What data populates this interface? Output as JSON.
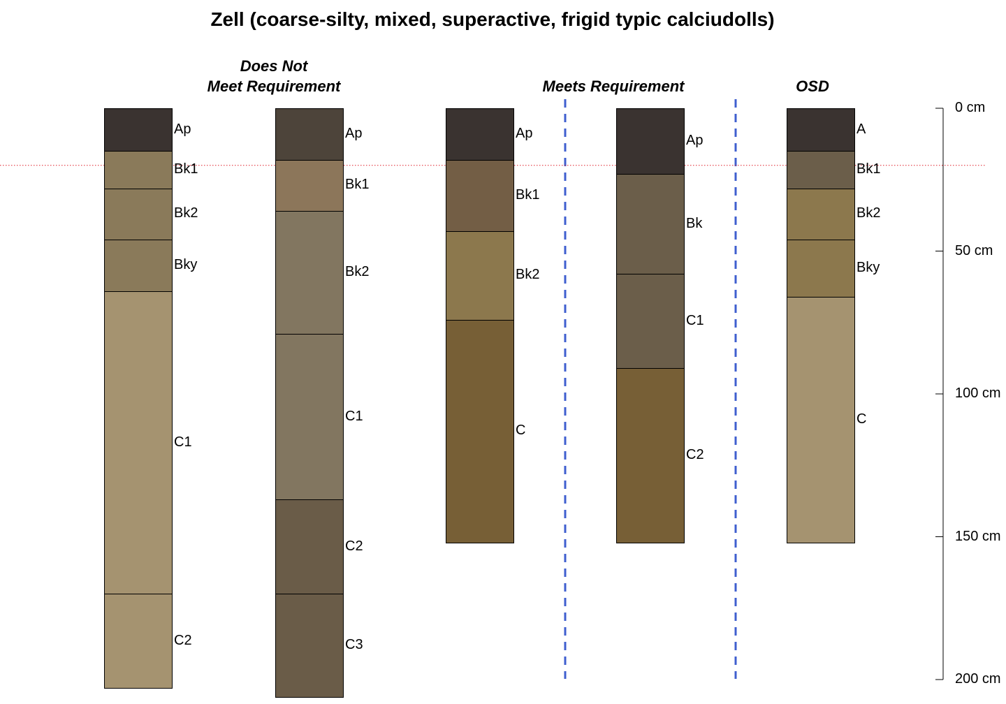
{
  "title": "Zell (coarse-silty, mixed, superactive, frigid typic calciudolls)",
  "chart_data": {
    "type": "soil-profile",
    "depth_units": "cm",
    "depth_range": [
      0,
      200
    ],
    "depth_ticks": [
      {
        "value": 0,
        "label": "0 cm"
      },
      {
        "value": 50,
        "label": "50 cm"
      },
      {
        "value": 100,
        "label": "100 cm"
      },
      {
        "value": 150,
        "label": "150 cm"
      },
      {
        "value": 200,
        "label": "200 cm"
      }
    ],
    "reference_depth": 20,
    "groups": [
      {
        "label_lines": [
          "Does Not",
          "Meet Requirement"
        ],
        "profiles": [
          0,
          1
        ]
      },
      {
        "label_lines": [
          "Meets Requirement"
        ],
        "profiles": [
          2,
          3
        ]
      },
      {
        "label_lines": [
          "OSD"
        ],
        "profiles": [
          4
        ]
      }
    ],
    "profiles": [
      {
        "horizons": [
          {
            "name": "Ap",
            "top": 0,
            "bottom": 15,
            "color": "#3a3330"
          },
          {
            "name": "Bk1",
            "top": 15,
            "bottom": 28,
            "color": "#8a7a5a"
          },
          {
            "name": "Bk2",
            "top": 28,
            "bottom": 46,
            "color": "#8a7a5a"
          },
          {
            "name": "Bky",
            "top": 46,
            "bottom": 64,
            "color": "#8a7a5a"
          },
          {
            "name": "C1",
            "top": 64,
            "bottom": 170,
            "color": "#a59370"
          },
          {
            "name": "C2",
            "top": 170,
            "bottom": 203,
            "color": "#a59370"
          }
        ]
      },
      {
        "horizons": [
          {
            "name": "Ap",
            "top": 0,
            "bottom": 18,
            "color": "#4d443a"
          },
          {
            "name": "Bk1",
            "top": 18,
            "bottom": 36,
            "color": "#8c765a"
          },
          {
            "name": "Bk2",
            "top": 36,
            "bottom": 79,
            "color": "#827660"
          },
          {
            "name": "C1",
            "top": 79,
            "bottom": 137,
            "color": "#827660"
          },
          {
            "name": "C2",
            "top": 137,
            "bottom": 170,
            "color": "#6a5c48"
          },
          {
            "name": "C3",
            "top": 170,
            "bottom": 206,
            "color": "#6a5c48"
          }
        ]
      },
      {
        "horizons": [
          {
            "name": "Ap",
            "top": 0,
            "bottom": 18,
            "color": "#3a3330"
          },
          {
            "name": "Bk1",
            "top": 18,
            "bottom": 43,
            "color": "#735e45"
          },
          {
            "name": "Bk2",
            "top": 43,
            "bottom": 74,
            "color": "#8c784d"
          },
          {
            "name": "C",
            "top": 74,
            "bottom": 152,
            "color": "#775f36"
          }
        ]
      },
      {
        "horizons": [
          {
            "name": "Ap",
            "top": 0,
            "bottom": 23,
            "color": "#3a3330"
          },
          {
            "name": "Bk",
            "top": 23,
            "bottom": 58,
            "color": "#6b5e4a"
          },
          {
            "name": "C1",
            "top": 58,
            "bottom": 91,
            "color": "#6b5e4a"
          },
          {
            "name": "C2",
            "top": 91,
            "bottom": 152,
            "color": "#775f36"
          }
        ]
      },
      {
        "horizons": [
          {
            "name": "A",
            "top": 0,
            "bottom": 15,
            "color": "#3a3330"
          },
          {
            "name": "Bk1",
            "top": 15,
            "bottom": 28,
            "color": "#6b5e4a"
          },
          {
            "name": "Bk2",
            "top": 28,
            "bottom": 46,
            "color": "#8c784d"
          },
          {
            "name": "Bky",
            "top": 46,
            "bottom": 66,
            "color": "#8c784d"
          },
          {
            "name": "C",
            "top": 66,
            "bottom": 152,
            "color": "#a59370"
          }
        ]
      }
    ]
  }
}
